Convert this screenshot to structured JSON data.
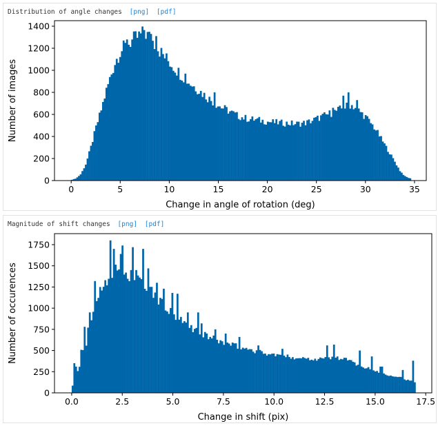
{
  "panels": [
    {
      "header_title": "Distribution of angle changes",
      "links": [
        "[png]",
        "[pdf]"
      ]
    },
    {
      "header_title": "Magnitude of shift changes",
      "links": [
        "[png]",
        "[pdf]"
      ]
    }
  ],
  "bar_color": "#0066aa",
  "chart_data": [
    {
      "type": "bar",
      "xlabel": "Change in angle of rotation (deg)",
      "ylabel": "Number of images",
      "xlim": [
        -1.7,
        36.2
      ],
      "ylim": [
        0,
        1450
      ],
      "xticks": [
        0,
        5,
        10,
        15,
        20,
        25,
        30,
        35
      ],
      "xtick_labels": [
        "0",
        "5",
        "10",
        "15",
        "20",
        "25",
        "30",
        "35"
      ],
      "yticks": [
        0,
        200,
        400,
        600,
        800,
        1000,
        1200,
        1400
      ],
      "ytick_labels": [
        "0",
        "200",
        "400",
        "600",
        "800",
        "1000",
        "1200",
        "1400"
      ],
      "bin_start": 0.0,
      "bin_width": 0.175,
      "profile": [
        [
          0,
          5
        ],
        [
          0.5,
          20
        ],
        [
          1,
          60
        ],
        [
          1.5,
          150
        ],
        [
          2,
          300
        ],
        [
          2.5,
          470
        ],
        [
          3,
          620
        ],
        [
          3.5,
          790
        ],
        [
          4,
          940
        ],
        [
          4.5,
          1080
        ],
        [
          5,
          1170
        ],
        [
          5.5,
          1215
        ],
        [
          6,
          1255
        ],
        [
          6.5,
          1285
        ],
        [
          7,
          1315
        ],
        [
          7.5,
          1340
        ],
        [
          8,
          1300
        ],
        [
          8.5,
          1245
        ],
        [
          9,
          1180
        ],
        [
          9.5,
          1125
        ],
        [
          10,
          1075
        ],
        [
          11,
          980
        ],
        [
          12,
          890
        ],
        [
          13,
          820
        ],
        [
          14,
          745
        ],
        [
          15,
          680
        ],
        [
          16,
          635
        ],
        [
          17,
          585
        ],
        [
          18,
          560
        ],
        [
          19,
          550
        ],
        [
          20,
          535
        ],
        [
          21,
          525
        ],
        [
          22,
          520
        ],
        [
          23,
          515
        ],
        [
          24,
          525
        ],
        [
          25,
          560
        ],
        [
          26,
          595
        ],
        [
          27,
          630
        ],
        [
          28,
          670
        ],
        [
          28.5,
          690
        ],
        [
          29,
          660
        ],
        [
          30,
          580
        ],
        [
          31,
          470
        ],
        [
          32,
          320
        ],
        [
          33,
          170
        ],
        [
          33.5,
          90
        ],
        [
          34,
          40
        ],
        [
          34.5,
          20
        ]
      ],
      "spikes": [
        [
          7.4,
          1365
        ],
        [
          8.2,
          1330
        ],
        [
          8.7,
          1310
        ],
        [
          28.2,
          800
        ],
        [
          27.8,
          770
        ],
        [
          29.2,
          730
        ],
        [
          26.6,
          660
        ],
        [
          5.6,
          1280
        ],
        [
          11.6,
          970
        ],
        [
          23.6,
          520
        ],
        [
          20.6,
          555
        ],
        [
          14.6,
          800
        ]
      ]
    },
    {
      "type": "bar",
      "xlabel": "Change in shift (pix)",
      "ylabel": "Number of occurences",
      "xlim": [
        -0.85,
        17.8
      ],
      "ylim": [
        0,
        1880
      ],
      "xticks": [
        0.0,
        2.5,
        5.0,
        7.5,
        10.0,
        12.5,
        15.0,
        17.5
      ],
      "xtick_labels": [
        "0.0",
        "2.5",
        "5.0",
        "7.5",
        "10.0",
        "12.5",
        "15.0",
        "17.5"
      ],
      "yticks": [
        0,
        250,
        500,
        750,
        1000,
        1250,
        1500,
        1750
      ],
      "ytick_labels": [
        "0",
        "250",
        "500",
        "750",
        "1000",
        "1250",
        "1500",
        "1750"
      ],
      "bin_start": 0.0,
      "bin_width": 0.085,
      "profile": [
        [
          0,
          10
        ],
        [
          0.05,
          100
        ],
        [
          0.2,
          300
        ],
        [
          0.35,
          220
        ],
        [
          0.5,
          600
        ],
        [
          0.65,
          400
        ],
        [
          0.8,
          700
        ],
        [
          1,
          900
        ],
        [
          1.3,
          1150
        ],
        [
          1.6,
          1300
        ],
        [
          1.9,
          1400
        ],
        [
          2.2,
          1440
        ],
        [
          2.5,
          1420
        ],
        [
          3,
          1360
        ],
        [
          3.5,
          1300
        ],
        [
          4,
          1180
        ],
        [
          4.5,
          1040
        ],
        [
          5,
          920
        ],
        [
          5.5,
          830
        ],
        [
          6,
          760
        ],
        [
          6.5,
          690
        ],
        [
          7,
          640
        ],
        [
          7.5,
          590
        ],
        [
          8,
          560
        ],
        [
          8.5,
          530
        ],
        [
          9,
          500
        ],
        [
          9.5,
          470
        ],
        [
          10,
          450
        ],
        [
          10.5,
          430
        ],
        [
          11,
          420
        ],
        [
          11.5,
          410
        ],
        [
          12,
          400
        ],
        [
          12.5,
          410
        ],
        [
          13,
          420
        ],
        [
          13.5,
          400
        ],
        [
          14,
          350
        ],
        [
          14.5,
          300
        ],
        [
          15,
          260
        ],
        [
          15.5,
          220
        ],
        [
          16,
          200
        ],
        [
          16.3,
          180
        ],
        [
          16.6,
          150
        ],
        [
          16.8,
          140
        ],
        [
          16.95,
          120
        ]
      ],
      "spikes": [
        [
          0.1,
          350
        ],
        [
          0.2,
          310
        ],
        [
          0.35,
          260
        ],
        [
          0.6,
          780
        ],
        [
          0.8,
          770
        ],
        [
          0.9,
          950
        ],
        [
          1.15,
          1320
        ],
        [
          1.3,
          1100
        ],
        [
          1.95,
          1800
        ],
        [
          2.05,
          1700
        ],
        [
          2.4,
          1640
        ],
        [
          2.55,
          1740
        ],
        [
          2.9,
          1450
        ],
        [
          3.05,
          1720
        ],
        [
          3.2,
          1450
        ],
        [
          3.55,
          1700
        ],
        [
          3.8,
          1470
        ],
        [
          4.2,
          1300
        ],
        [
          4.55,
          1230
        ],
        [
          4.95,
          1180
        ],
        [
          5.2,
          1170
        ],
        [
          5.7,
          950
        ],
        [
          6.25,
          950
        ],
        [
          6.45,
          820
        ],
        [
          7.1,
          750
        ],
        [
          7.6,
          700
        ],
        [
          8.3,
          660
        ],
        [
          9.2,
          560
        ],
        [
          10.4,
          520
        ],
        [
          12.6,
          560
        ],
        [
          13.0,
          570
        ],
        [
          14.2,
          500
        ],
        [
          14.8,
          430
        ],
        [
          15.3,
          310
        ],
        [
          16.35,
          270
        ],
        [
          16.85,
          380
        ]
      ]
    }
  ]
}
